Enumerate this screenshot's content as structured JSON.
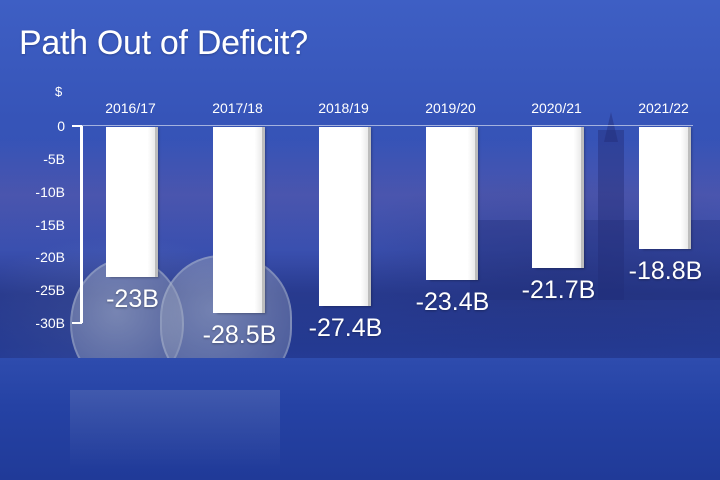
{
  "title": "Path Out of Deficit?",
  "unit_label": "$",
  "y_ticks": [
    "0",
    "-5B",
    "-10B",
    "-15B",
    "-20B",
    "-25B",
    "-30B"
  ],
  "categories": [
    "2016/17",
    "2017/18",
    "2018/19",
    "2019/20",
    "2020/21",
    "2021/22"
  ],
  "value_labels": [
    "-23B",
    "-28.5B",
    "-27.4B",
    "-23.4B",
    "-21.7B",
    "-18.8B"
  ],
  "colors": {
    "background": "#2b47ad",
    "bar": "#ffffff",
    "text": "#ffffff"
  },
  "chart_data": {
    "type": "bar",
    "title": "Path Out of Deficit?",
    "xlabel": "",
    "ylabel": "$",
    "categories": [
      "2016/17",
      "2017/18",
      "2018/19",
      "2019/20",
      "2020/21",
      "2021/22"
    ],
    "values": [
      -23,
      -28.5,
      -27.4,
      -23.4,
      -21.7,
      -18.8
    ],
    "value_unit": "B (billions)",
    "data_labels": [
      "-23B",
      "-28.5B",
      "-27.4B",
      "-23.4B",
      "-21.7B",
      "-18.8B"
    ],
    "ylim": [
      -30,
      0
    ],
    "y_tick_labels": [
      "0",
      "-5B",
      "-10B",
      "-15B",
      "-20B",
      "-25B",
      "-30B"
    ],
    "x_axis_position": "top",
    "grid": false,
    "legend": null
  }
}
